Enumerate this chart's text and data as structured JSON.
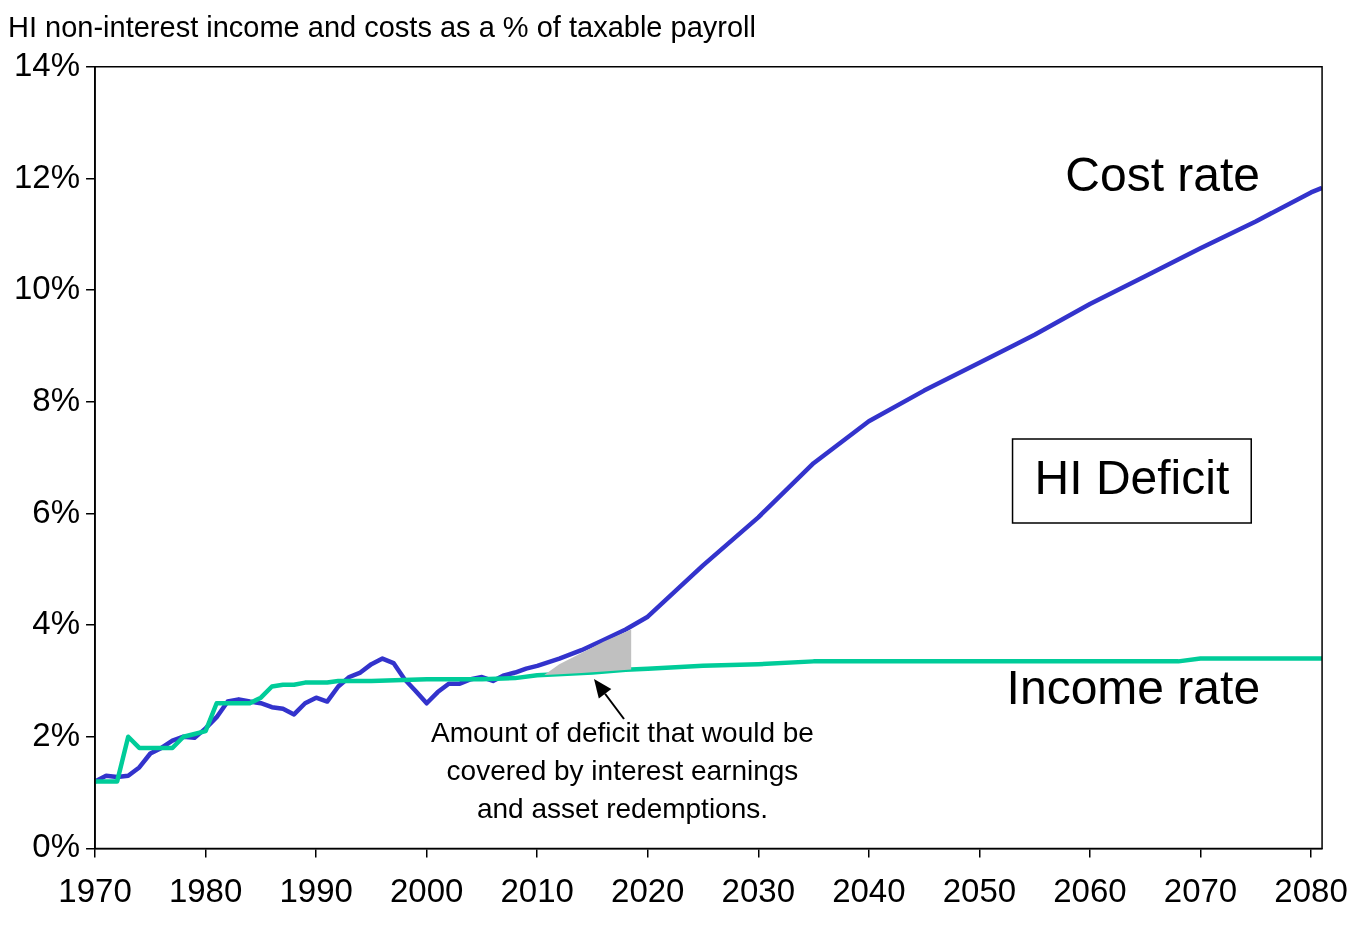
{
  "chart_data": {
    "type": "line",
    "title": "HI non-interest income and costs as a % of taxable payroll",
    "xlim": [
      1970,
      2081
    ],
    "xticks": [
      1970,
      1980,
      1990,
      2000,
      2010,
      2020,
      2030,
      2040,
      2050,
      2060,
      2070,
      2080
    ],
    "ylim": [
      0,
      14
    ],
    "yticks": [
      {
        "value": 0,
        "label": "0%"
      },
      {
        "value": 2,
        "label": "2%"
      },
      {
        "value": 4,
        "label": "4%"
      },
      {
        "value": 6,
        "label": "6%"
      },
      {
        "value": 8,
        "label": "8%"
      },
      {
        "value": 10,
        "label": "10%"
      },
      {
        "value": 12,
        "label": "12%"
      },
      {
        "value": 14,
        "label": "14%"
      }
    ],
    "grid": false,
    "legend": false,
    "marker": "none",
    "line_style": "solid",
    "series": [
      {
        "type": "area",
        "color": "#c0c0c0",
        "x": [
          2010.6,
          2012,
          2014,
          2016,
          2018.5
        ],
        "values": [
          3.1,
          3.3,
          3.5,
          3.7,
          3.92
        ]
      },
      {
        "name": "Income rate",
        "color": "#00cc99",
        "x": [
          1970,
          1971,
          1972,
          1973,
          1974,
          1975,
          1976,
          1977,
          1978,
          1979,
          1980,
          1981,
          1982,
          1983,
          1984,
          1985,
          1986,
          1987,
          1988,
          1989,
          1990,
          1991,
          1992,
          1995,
          2000,
          2005,
          2008,
          2010,
          2015,
          2018,
          2020,
          2025,
          2030,
          2035,
          2040,
          2050,
          2060,
          2068,
          2070,
          2081
        ],
        "values": [
          1.2,
          1.2,
          1.2,
          2.0,
          1.8,
          1.8,
          1.8,
          1.8,
          2.0,
          2.05,
          2.1,
          2.6,
          2.6,
          2.6,
          2.6,
          2.7,
          2.9,
          2.93,
          2.93,
          2.97,
          2.97,
          2.97,
          3.0,
          3.0,
          3.03,
          3.03,
          3.05,
          3.1,
          3.15,
          3.2,
          3.22,
          3.27,
          3.3,
          3.35,
          3.35,
          3.35,
          3.35,
          3.35,
          3.4,
          3.4
        ]
      },
      {
        "name": "Cost rate",
        "color": "#3333cc",
        "x": [
          1970,
          1971,
          1972,
          1973,
          1974,
          1975,
          1976,
          1977,
          1978,
          1979,
          1980,
          1981,
          1982,
          1983,
          1984,
          1985,
          1986,
          1987,
          1988,
          1989,
          1990,
          1991,
          1992,
          1993,
          1994,
          1995,
          1996,
          1997,
          1998,
          1999,
          2000,
          2001,
          2002,
          2003,
          2004,
          2005,
          2006,
          2007,
          2008,
          2009,
          2010,
          2012,
          2014,
          2016,
          2018,
          2020,
          2025,
          2030,
          2035,
          2040,
          2045,
          2050,
          2055,
          2060,
          2065,
          2070,
          2075,
          2080,
          2081
        ],
        "values": [
          1.2,
          1.3,
          1.28,
          1.3,
          1.45,
          1.7,
          1.8,
          1.93,
          2.0,
          1.98,
          2.15,
          2.35,
          2.63,
          2.67,
          2.63,
          2.6,
          2.53,
          2.5,
          2.4,
          2.6,
          2.7,
          2.63,
          2.9,
          3.07,
          3.15,
          3.3,
          3.4,
          3.32,
          3.03,
          2.82,
          2.6,
          2.8,
          2.95,
          2.95,
          3.03,
          3.07,
          3.0,
          3.1,
          3.15,
          3.22,
          3.27,
          3.4,
          3.55,
          3.73,
          3.92,
          4.15,
          5.07,
          5.93,
          6.9,
          7.65,
          8.2,
          8.7,
          9.2,
          9.75,
          10.25,
          10.75,
          11.23,
          11.75,
          11.83
        ]
      }
    ],
    "annotations": [
      "HI Deficit",
      {
        "text": "Amount of deficit that would be\ncovered by interest earnings\nand asset redemptions.",
        "x": 2015,
        "y": 3.15
      }
    ]
  }
}
